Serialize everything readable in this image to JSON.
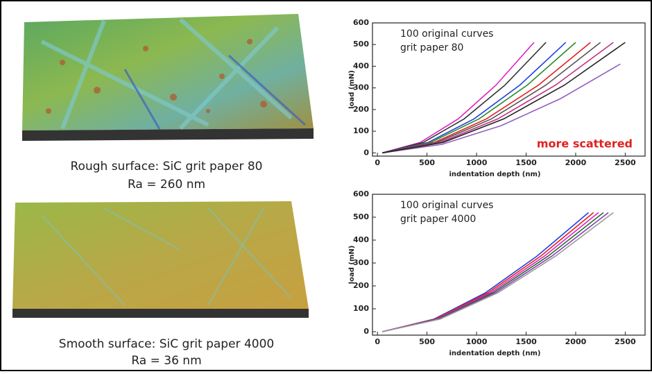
{
  "chart_data": [
    {
      "type": "line",
      "xlabel": "indentation depth (nm)",
      "ylabel": "load (mN)",
      "annotation": [
        "100 original curves",
        "grit paper 80"
      ],
      "annotation2": "more scattered",
      "xlim": [
        -50,
        2700
      ],
      "ylim": [
        -15,
        600
      ],
      "xticks": [
        0,
        500,
        1000,
        1500,
        2000,
        2500
      ],
      "yticks": [
        0,
        100,
        200,
        300,
        400,
        500,
        600
      ],
      "series": [
        {
          "color": "#e020c0",
          "x": [
            50,
            432,
            815,
            1197,
            1580
          ],
          "values": [
            0,
            48,
            157,
            313,
            510
          ]
        },
        {
          "color": "#333333",
          "x": [
            50,
            462,
            875,
            1287,
            1700
          ],
          "values": [
            0,
            48,
            157,
            313,
            510
          ]
        },
        {
          "color": "#2040e0",
          "x": [
            50,
            512,
            975,
            1437,
            1900
          ],
          "values": [
            0,
            48,
            157,
            313,
            510
          ]
        },
        {
          "color": "#2a8a2a",
          "x": [
            50,
            537,
            1025,
            1512,
            2000
          ],
          "values": [
            0,
            48,
            157,
            313,
            510
          ]
        },
        {
          "color": "#e02020",
          "x": [
            50,
            575,
            1100,
            1625,
            2150
          ],
          "values": [
            0,
            48,
            157,
            313,
            510
          ]
        },
        {
          "color": "#555555",
          "x": [
            50,
            600,
            1150,
            1700,
            2250
          ],
          "values": [
            0,
            48,
            157,
            313,
            510
          ]
        },
        {
          "color": "#c03080",
          "x": [
            50,
            632,
            1215,
            1797,
            2380
          ],
          "values": [
            0,
            48,
            157,
            313,
            510
          ]
        },
        {
          "color": "#9060c0",
          "x": [
            50,
            650,
            1250,
            1850,
            2450
          ],
          "values": [
            0,
            39,
            126,
            251,
            410
          ]
        },
        {
          "color": "#222222",
          "x": [
            50,
            662,
            1275,
            1887,
            2500
          ],
          "values": [
            0,
            48,
            157,
            313,
            510
          ]
        }
      ]
    },
    {
      "type": "line",
      "xlabel": "indentation depth (nm)",
      "ylabel": "load (mN)",
      "annotation": [
        "100 original curves",
        "grit paper 4000"
      ],
      "xlim": [
        -50,
        2700
      ],
      "ylim": [
        -15,
        600
      ],
      "xticks": [
        0,
        500,
        1000,
        1500,
        2000,
        2500
      ],
      "yticks": [
        0,
        100,
        200,
        300,
        400,
        500,
        600
      ],
      "series": [
        {
          "color": "#2040e0",
          "x": [
            50,
            570,
            1090,
            1610,
            2130
          ],
          "values": [
            0,
            55,
            170,
            330,
            520
          ]
        },
        {
          "color": "#e02020",
          "x": [
            50,
            582,
            1115,
            1647,
            2180
          ],
          "values": [
            0,
            55,
            170,
            330,
            520
          ]
        },
        {
          "color": "#e020c0",
          "x": [
            50,
            595,
            1140,
            1685,
            2230
          ],
          "values": [
            0,
            55,
            170,
            330,
            520
          ]
        },
        {
          "color": "#2a6a2a",
          "x": [
            50,
            607,
            1165,
            1722,
            2280
          ],
          "values": [
            0,
            55,
            170,
            330,
            520
          ]
        },
        {
          "color": "#8040b0",
          "x": [
            50,
            620,
            1190,
            1760,
            2330
          ],
          "values": [
            0,
            55,
            170,
            330,
            520
          ]
        },
        {
          "color": "#999999",
          "x": [
            50,
            632,
            1215,
            1797,
            2380
          ],
          "values": [
            0,
            55,
            170,
            330,
            520
          ]
        }
      ]
    }
  ],
  "captions": [
    [
      "Rough surface: SiC grit paper 80",
      "Ra = 260 nm"
    ],
    [
      "Smooth surface: SiC grit paper 4000",
      "Ra = 36 nm"
    ]
  ]
}
